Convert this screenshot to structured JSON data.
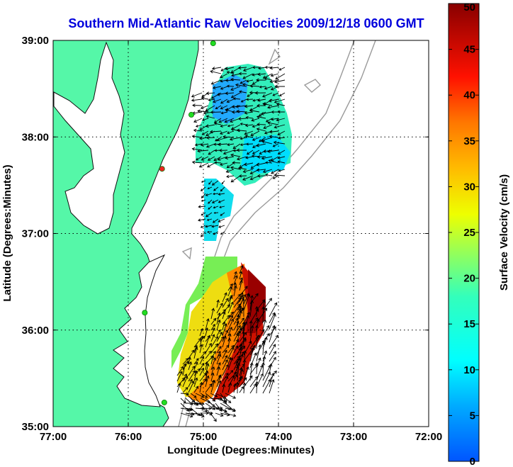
{
  "title": "Southern Mid-Atlantic Raw Velocities 2009/12/18 0600 GMT",
  "colors": {
    "land": "#55f7a8",
    "coast": "#111111",
    "bathymetry": "#9a9a9a",
    "station": "#22dd22",
    "station_alert": "#ee2222",
    "grid": "#000000"
  },
  "chart_data": {
    "type": "heatmap",
    "xlabel": "Longitude (Degrees:Minutes)",
    "ylabel": "Latitude (Degrees:Minutes)",
    "x_ticks": [
      "77:00",
      "76:00",
      "75:00",
      "74:00",
      "73:00",
      "72:00"
    ],
    "y_ticks": [
      "39:00",
      "38:00",
      "37:00",
      "36:00",
      "35:00"
    ],
    "xlim": [
      -77,
      -72
    ],
    "ylim": [
      35,
      39
    ],
    "grid": true,
    "colorbar": {
      "label": "Surface Velocity (cm/s)",
      "min": 0,
      "max": 50,
      "ticks": [
        "0",
        "5",
        "10",
        "15",
        "20",
        "25",
        "30",
        "35",
        "40",
        "45",
        "50"
      ]
    },
    "stations": [
      {
        "lon": -74.87,
        "lat": 38.97,
        "status": "ok"
      },
      {
        "lon": -75.16,
        "lat": 38.23,
        "status": "ok"
      },
      {
        "lon": -75.55,
        "lat": 37.67,
        "status": "alert"
      },
      {
        "lon": -75.78,
        "lat": 36.18,
        "status": "ok"
      },
      {
        "lon": -75.52,
        "lat": 35.25,
        "status": "ok"
      }
    ]
  }
}
